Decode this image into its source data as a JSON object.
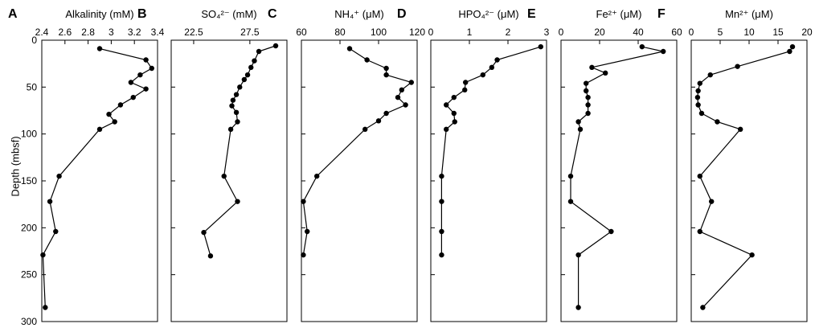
{
  "figure": {
    "ylabel": "Depth (mbsf)",
    "yticks": [
      0,
      50,
      100,
      150,
      200,
      250,
      300
    ],
    "ylim": [
      0,
      300
    ],
    "yinverted": true
  },
  "chart_data": [
    {
      "type": "line",
      "panel": "A",
      "title": "Alkalinity (mM)",
      "xlim": [
        2.4,
        3.4
      ],
      "xticks": [
        "2.4",
        "2.6",
        "2.8",
        "3",
        "3.2",
        "3.4"
      ],
      "points": [
        [
          2.9,
          9
        ],
        [
          3.3,
          21
        ],
        [
          3.35,
          30
        ],
        [
          3.25,
          37
        ],
        [
          3.17,
          45
        ],
        [
          3.3,
          52
        ],
        [
          3.19,
          61
        ],
        [
          3.08,
          69
        ],
        [
          2.98,
          79
        ],
        [
          3.03,
          87
        ],
        [
          2.9,
          95
        ],
        [
          2.55,
          145
        ],
        [
          2.47,
          172
        ],
        [
          2.52,
          204
        ],
        [
          2.41,
          229
        ],
        [
          2.43,
          285
        ]
      ]
    },
    {
      "type": "line",
      "panel": "B",
      "title": "SO₄²⁻ (mM)",
      "xlim": [
        20.5,
        30.8
      ],
      "xticks": [
        "22.5",
        "27.5"
      ],
      "points": [
        [
          29.8,
          6
        ],
        [
          28.3,
          12
        ],
        [
          27.9,
          22
        ],
        [
          27.6,
          29
        ],
        [
          27.3,
          37
        ],
        [
          27.0,
          42
        ],
        [
          26.6,
          50
        ],
        [
          26.3,
          58
        ],
        [
          26.0,
          64
        ],
        [
          25.9,
          70
        ],
        [
          26.3,
          77
        ],
        [
          26.4,
          87
        ],
        [
          25.8,
          95
        ],
        [
          25.2,
          145
        ],
        [
          26.4,
          172
        ],
        [
          23.4,
          205
        ],
        [
          24.0,
          230
        ]
      ]
    },
    {
      "type": "line",
      "panel": "C",
      "title": "NH₄⁺ (μM)",
      "xlim": [
        60,
        120
      ],
      "xticks": [
        "60",
        "80",
        "100",
        "120"
      ],
      "points": [
        [
          85,
          9
        ],
        [
          94,
          21
        ],
        [
          104,
          30
        ],
        [
          104,
          37
        ],
        [
          117,
          45
        ],
        [
          112,
          53
        ],
        [
          110,
          61
        ],
        [
          114,
          69
        ],
        [
          104,
          78
        ],
        [
          100,
          86
        ],
        [
          93,
          95
        ],
        [
          68,
          145
        ],
        [
          61,
          172
        ],
        [
          63,
          204
        ],
        [
          61,
          229
        ]
      ]
    },
    {
      "type": "line",
      "panel": "D",
      "title": "HPO₄²⁻ (μM)",
      "xlim": [
        0,
        3
      ],
      "xticks": [
        "0",
        "1",
        "2",
        "3"
      ],
      "points": [
        [
          2.85,
          7
        ],
        [
          1.72,
          21
        ],
        [
          1.58,
          29
        ],
        [
          1.35,
          37
        ],
        [
          0.9,
          45
        ],
        [
          0.88,
          53
        ],
        [
          0.6,
          61
        ],
        [
          0.4,
          69
        ],
        [
          0.6,
          78
        ],
        [
          0.62,
          87
        ],
        [
          0.4,
          95
        ],
        [
          0.28,
          145
        ],
        [
          0.28,
          172
        ],
        [
          0.28,
          204
        ],
        [
          0.28,
          229
        ]
      ]
    },
    {
      "type": "line",
      "panel": "E",
      "title": "Fe²⁺ (μM)",
      "xlim": [
        0,
        60
      ],
      "xticks": [
        "0",
        "20",
        "40",
        "60"
      ],
      "points": [
        [
          42,
          7
        ],
        [
          53,
          12
        ],
        [
          16,
          29
        ],
        [
          23,
          35
        ],
        [
          13,
          46
        ],
        [
          13,
          54
        ],
        [
          14,
          61
        ],
        [
          14,
          69
        ],
        [
          14,
          78
        ],
        [
          9,
          87
        ],
        [
          10,
          95
        ],
        [
          5,
          145
        ],
        [
          5,
          172
        ],
        [
          26,
          204
        ],
        [
          9,
          229
        ],
        [
          9,
          285
        ]
      ]
    },
    {
      "type": "line",
      "panel": "F",
      "title": "Mn²⁺ (μM)",
      "xlim": [
        0,
        20
      ],
      "xticks": [
        "0",
        "5",
        "10",
        "15",
        "20"
      ],
      "points": [
        [
          17.5,
          7
        ],
        [
          17,
          12
        ],
        [
          8,
          28
        ],
        [
          3.3,
          37
        ],
        [
          1.5,
          46
        ],
        [
          1.2,
          54
        ],
        [
          1.1,
          61
        ],
        [
          1.2,
          69
        ],
        [
          1.8,
          78
        ],
        [
          4.5,
          87
        ],
        [
          8.5,
          95
        ],
        [
          1.5,
          145
        ],
        [
          3.5,
          172
        ],
        [
          1.5,
          204
        ],
        [
          10.5,
          229
        ],
        [
          2,
          285
        ]
      ]
    }
  ]
}
